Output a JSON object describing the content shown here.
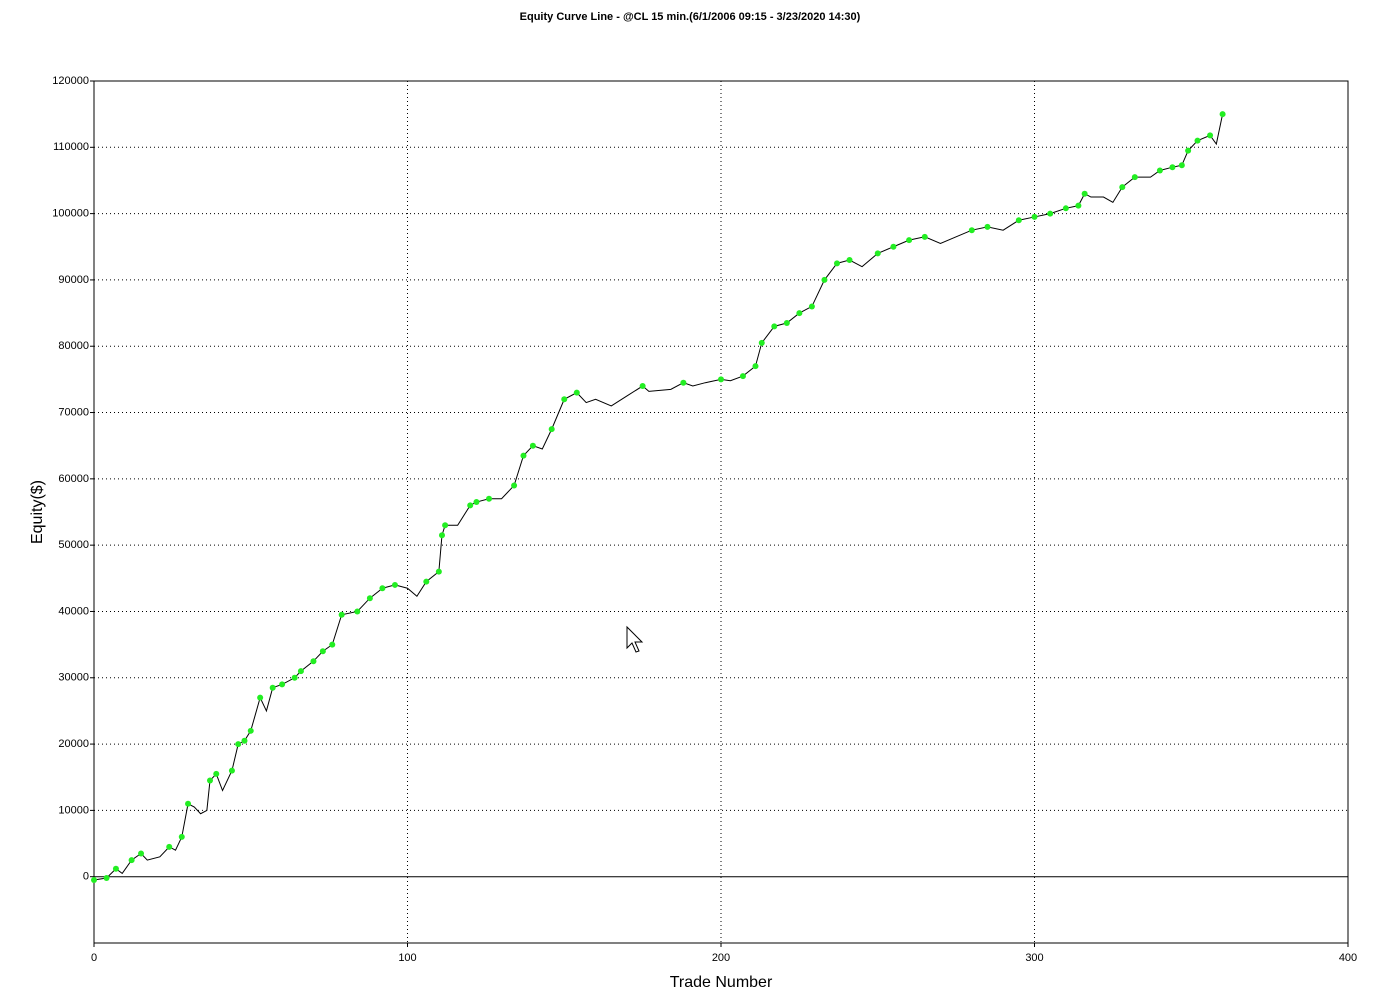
{
  "chart_data": {
    "type": "line",
    "title": "Equity Curve Line - @CL 15 min.(6/1/2006 09:15 - 3/23/2020 14:30)",
    "x_label": "Trade Number",
    "y_label": "Equity($)",
    "x": [
      0,
      4,
      7,
      9,
      12,
      15,
      17,
      21,
      24,
      26,
      28,
      30,
      32,
      34,
      36,
      37,
      39,
      41,
      44,
      46,
      48,
      50,
      53,
      55,
      57,
      60,
      64,
      66,
      70,
      73,
      76,
      79,
      84,
      88,
      92,
      96,
      100,
      103,
      106,
      110,
      111,
      112,
      116,
      120,
      122,
      126,
      130,
      134,
      137,
      140,
      143,
      146,
      150,
      154,
      157,
      160,
      165,
      170,
      175,
      177,
      184,
      188,
      191,
      195,
      200,
      203,
      207,
      211,
      213,
      217,
      221,
      225,
      229,
      233,
      237,
      241,
      245,
      250,
      255,
      260,
      265,
      270,
      275,
      280,
      285,
      290,
      295,
      300,
      305,
      310,
      314,
      316,
      318,
      322,
      325,
      328,
      332,
      337,
      340,
      344,
      347,
      349,
      352,
      356,
      358,
      360
    ],
    "series": [
      {
        "color": "#000000",
        "marker_color": "#22ee22",
        "values": [
          -500,
          -200,
          1200,
          500,
          2500,
          3500,
          2500,
          3000,
          4500,
          4000,
          6000,
          11000,
          10500,
          9500,
          10000,
          14500,
          15500,
          13000,
          16000,
          20000,
          20500,
          22000,
          27000,
          25000,
          28500,
          29000,
          30000,
          31000,
          32500,
          34000,
          35000,
          39500,
          40000,
          42000,
          43500,
          44000,
          43500,
          42300,
          44500,
          46000,
          51500,
          53000,
          53000,
          56000,
          56500,
          57000,
          57000,
          59000,
          63500,
          65000,
          64500,
          67500,
          72000,
          73000,
          71500,
          72000,
          71000,
          72500,
          74000,
          73200,
          73500,
          74500,
          74000,
          74500,
          75000,
          74800,
          75500,
          77000,
          80500,
          83000,
          83500,
          85000,
          86000,
          90000,
          92500,
          93000,
          92000,
          94000,
          95000,
          96000,
          96500,
          95500,
          96500,
          97500,
          98000,
          97500,
          99000,
          99500,
          100000,
          100800,
          101200,
          103000,
          102500,
          102500,
          101700,
          104000,
          105500,
          105500,
          106500,
          107000,
          107300,
          109500,
          111000,
          111800,
          110500,
          115000
        ]
      }
    ],
    "xlim": [
      0,
      400
    ],
    "ylim": [
      -10000,
      120000
    ],
    "xticks": [
      0,
      100,
      200,
      300,
      400
    ],
    "yticks": [
      0,
      10000,
      20000,
      30000,
      40000,
      50000,
      60000,
      70000,
      80000,
      90000,
      100000,
      110000,
      120000
    ],
    "grid": true
  }
}
